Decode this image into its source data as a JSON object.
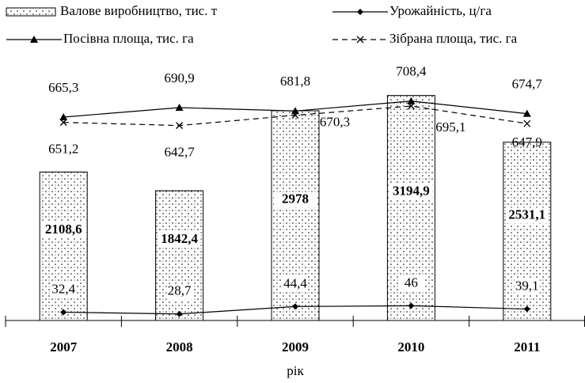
{
  "chart_data": {
    "type": "bar",
    "x_label": "рік",
    "categories": [
      "2007",
      "2008",
      "2009",
      "2010",
      "2011"
    ],
    "series": [
      {
        "name": "Валове виробництво, тис. т",
        "type": "bar",
        "color": "#000000",
        "values": [
          2108.6,
          1842.4,
          2978,
          3194.9,
          2531.1
        ],
        "value_labels": [
          "2108,6",
          "1842,4",
          "2978",
          "3194,9",
          "2531,1"
        ]
      },
      {
        "name": "Урожайність, ц/га",
        "type": "line",
        "marker": "diamond",
        "color": "#000000",
        "values": [
          32.4,
          28.7,
          44.4,
          46,
          39.1
        ],
        "value_labels": [
          "32,4",
          "28,7",
          "44,4",
          "46",
          "39,1"
        ]
      },
      {
        "name": "Посівна площа, тис. га",
        "type": "line",
        "marker": "triangle",
        "color": "#000000",
        "values": [
          665.3,
          690.9,
          681.8,
          708.4,
          674.7
        ],
        "value_labels": [
          "665,3",
          "690,9",
          "681,8",
          "708,4",
          "674,7"
        ]
      },
      {
        "name": "Зібрана площа, тис. га",
        "type": "line",
        "marker": "x",
        "dashed": true,
        "color": "#000000",
        "values": [
          651.2,
          642.7,
          670.3,
          695.1,
          647.9
        ],
        "value_labels": [
          "651,2",
          "642,7",
          "670,3",
          "695,1",
          "647,9"
        ]
      }
    ]
  }
}
